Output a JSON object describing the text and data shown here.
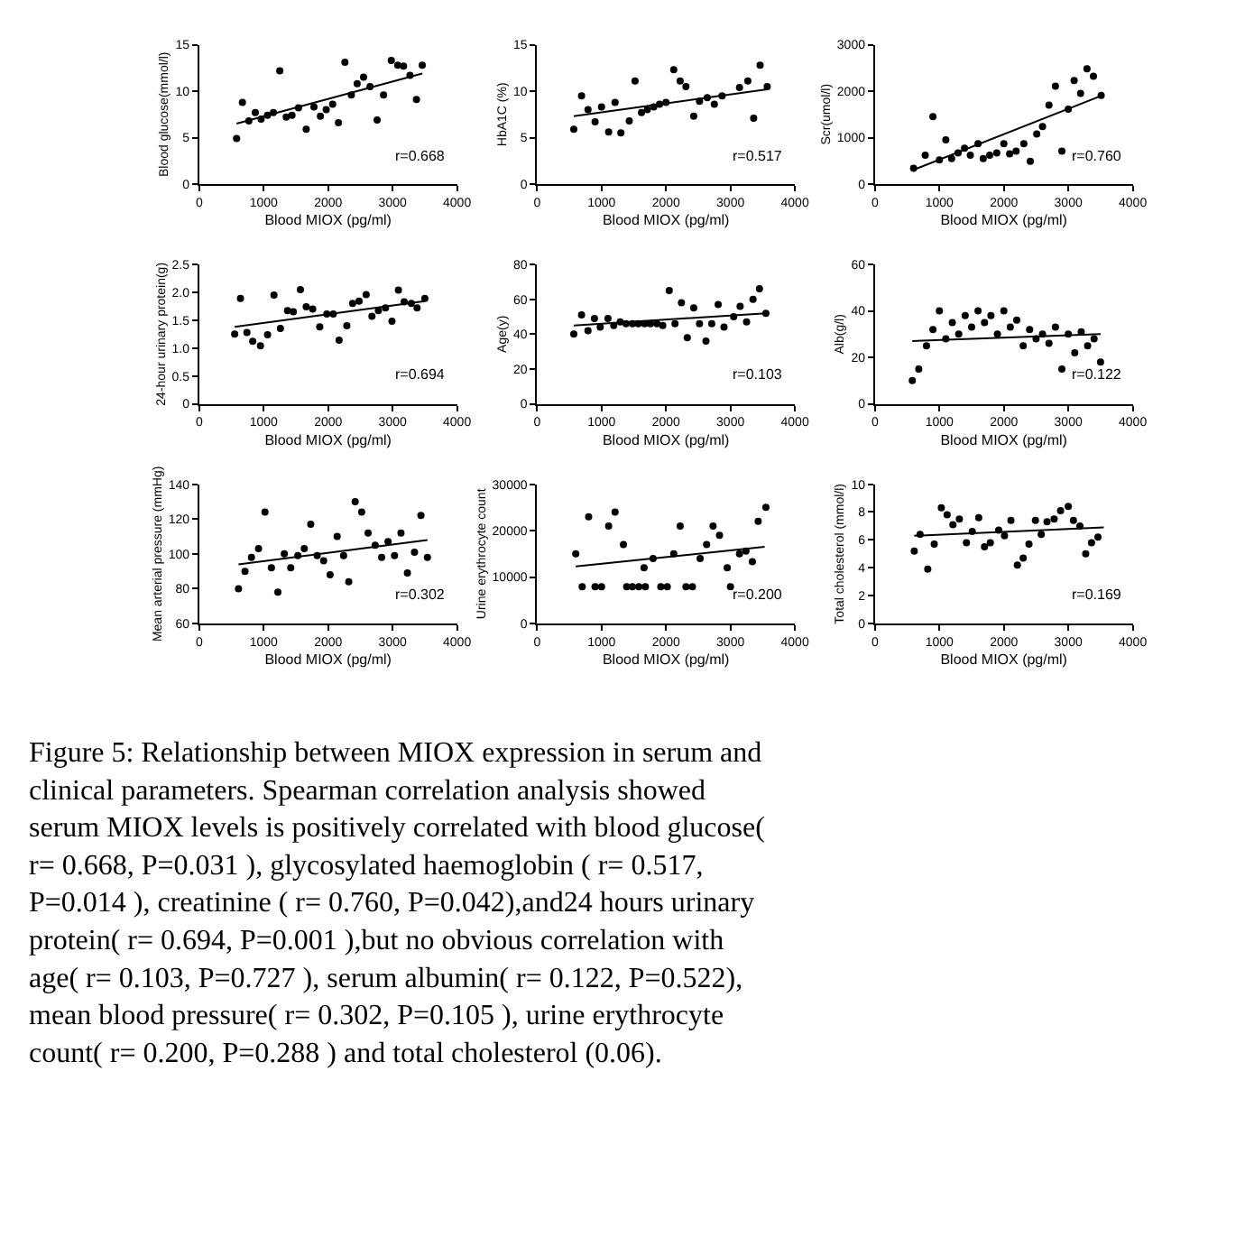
{
  "chart_data": [
    {
      "type": "scatter",
      "xlabel": "Blood MIOX (pg/ml)",
      "ylabel": "Blood glucose(mmol/l)",
      "xlim": [
        0,
        4000
      ],
      "xticks": [
        0,
        1000,
        2000,
        3000,
        4000
      ],
      "ylim": [
        0,
        15
      ],
      "yticks": [
        0,
        5,
        10,
        15
      ],
      "marker": "circle",
      "annotations": [
        "r=0.668"
      ],
      "series": [
        {
          "type": "scatter",
          "color": "#000000",
          "x": [
            580,
            670,
            770,
            870,
            960,
            1060,
            1150,
            1250,
            1350,
            1440,
            1540,
            1660,
            1780,
            1880,
            1970,
            2070,
            2160,
            2260,
            2360,
            2450,
            2550,
            2650,
            2760,
            2860,
            2980,
            3080,
            3170,
            3270,
            3370,
            3460
          ],
          "values": [
            4.9,
            8.8,
            6.8,
            7.7,
            7.0,
            7.4,
            7.7,
            12.2,
            7.2,
            7.4,
            8.2,
            5.9,
            8.3,
            7.3,
            8.0,
            8.6,
            6.6,
            13.1,
            9.6,
            10.8,
            11.5,
            10.5,
            6.9,
            9.6,
            13.3,
            12.8,
            12.7,
            11.7,
            9.1,
            12.8
          ]
        },
        {
          "type": "line",
          "marker": "none",
          "color": "#000000",
          "x": [
            580,
            3460
          ],
          "values": [
            6.5,
            11.9
          ]
        }
      ]
    },
    {
      "type": "scatter",
      "xlabel": "Blood MIOX (pg/ml)",
      "ylabel": "HbA1C (%)",
      "xlim": [
        0,
        4000
      ],
      "xticks": [
        0,
        1000,
        2000,
        3000,
        4000
      ],
      "ylim": [
        0,
        15
      ],
      "yticks": [
        0,
        5,
        10,
        15
      ],
      "marker": "circle",
      "annotations": [
        "r=0.517"
      ],
      "series": [
        {
          "type": "scatter",
          "color": "#000000",
          "x": [
            570,
            690,
            790,
            900,
            1000,
            1110,
            1210,
            1300,
            1430,
            1520,
            1620,
            1710,
            1810,
            1900,
            2000,
            2120,
            2220,
            2310,
            2430,
            2520,
            2640,
            2750,
            2870,
            3140,
            3270,
            3360,
            3460,
            3570
          ],
          "values": [
            5.9,
            9.5,
            8.0,
            6.7,
            8.3,
            5.6,
            8.8,
            5.5,
            6.8,
            11.1,
            7.7,
            8.0,
            8.3,
            8.6,
            8.8,
            12.3,
            11.1,
            10.5,
            7.3,
            8.9,
            9.3,
            8.6,
            9.5,
            10.4,
            11.1,
            7.1,
            12.8,
            10.5
          ]
        },
        {
          "type": "line",
          "marker": "none",
          "color": "#000000",
          "x": [
            570,
            3570
          ],
          "values": [
            7.3,
            10.2
          ]
        }
      ]
    },
    {
      "type": "scatter",
      "xlabel": "Blood MIOX (pg/ml)",
      "ylabel": "Scr(umol/l)",
      "xlim": [
        0,
        4000
      ],
      "xticks": [
        0,
        1000,
        2000,
        3000,
        4000
      ],
      "ylim": [
        0,
        3000
      ],
      "yticks": [
        0,
        1000,
        2000,
        3000
      ],
      "marker": "circle",
      "annotations": [
        "r=0.760"
      ],
      "series": [
        {
          "type": "scatter",
          "color": "#000000",
          "x": [
            600,
            780,
            900,
            1000,
            1100,
            1190,
            1290,
            1390,
            1480,
            1600,
            1680,
            1780,
            1890,
            2000,
            2090,
            2190,
            2310,
            2410,
            2510,
            2600,
            2700,
            2800,
            2900,
            3000,
            3090,
            3190,
            3290,
            3390,
            3510
          ],
          "values": [
            340,
            620,
            1450,
            520,
            950,
            550,
            670,
            770,
            620,
            870,
            550,
            620,
            670,
            870,
            650,
            710,
            870,
            490,
            1080,
            1240,
            1700,
            2110,
            710,
            1610,
            2230,
            1950,
            2480,
            2320,
            1910
          ]
        },
        {
          "type": "line",
          "marker": "none",
          "color": "#000000",
          "x": [
            585,
            3530
          ],
          "values": [
            300,
            1910
          ]
        }
      ]
    },
    {
      "type": "scatter",
      "xlabel": "Blood MIOX (pg/ml)",
      "ylabel": "24-hour urinary protein(g)",
      "xlim": [
        0,
        4000
      ],
      "xticks": [
        0,
        1000,
        2000,
        3000,
        4000
      ],
      "ylim": [
        0,
        2.5
      ],
      "yticks": [
        0,
        0.5,
        {
          "value": 1,
          "label": "1.0"
        },
        1.5,
        {
          "value": 2,
          "label": "2.0"
        },
        2.5
      ],
      "marker": "circle",
      "annotations": [
        "r=0.694"
      ],
      "series": [
        {
          "type": "scatter",
          "color": "#000000",
          "x": [
            550,
            640,
            740,
            830,
            950,
            1060,
            1160,
            1260,
            1370,
            1460,
            1570,
            1660,
            1760,
            1870,
            1980,
            2080,
            2170,
            2290,
            2380,
            2480,
            2590,
            2680,
            2780,
            2890,
            2990,
            3090,
            3180,
            3290,
            3380,
            3500
          ],
          "values": [
            1.25,
            1.89,
            1.28,
            1.12,
            1.04,
            1.24,
            1.95,
            1.35,
            1.67,
            1.65,
            2.05,
            1.74,
            1.7,
            1.38,
            1.61,
            1.61,
            1.14,
            1.4,
            1.8,
            1.84,
            1.96,
            1.57,
            1.67,
            1.72,
            1.48,
            2.04,
            1.83,
            1.8,
            1.72,
            1.89
          ]
        },
        {
          "type": "line",
          "marker": "none",
          "color": "#000000",
          "x": [
            550,
            3500
          ],
          "values": [
            1.38,
            1.84
          ]
        }
      ]
    },
    {
      "type": "scatter",
      "xlabel": "Blood MIOX (pg/ml)",
      "ylabel": "Age(y)",
      "xlim": [
        0,
        4000
      ],
      "xticks": [
        0,
        1000,
        2000,
        3000,
        4000
      ],
      "ylim": [
        0,
        80
      ],
      "yticks": [
        0,
        20,
        40,
        60,
        80
      ],
      "marker": "circle",
      "annotations": [
        "r=0.103"
      ],
      "series": [
        {
          "type": "scatter",
          "color": "#000000",
          "x": [
            570,
            690,
            790,
            890,
            980,
            1100,
            1190,
            1290,
            1380,
            1480,
            1570,
            1670,
            1760,
            1860,
            1950,
            2050,
            2140,
            2240,
            2330,
            2430,
            2520,
            2620,
            2710,
            2810,
            2900,
            3050,
            3150,
            3250,
            3350,
            3450,
            3550
          ],
          "values": [
            40,
            51,
            42,
            49,
            44,
            49,
            45,
            47,
            46,
            46,
            46,
            46,
            46,
            46,
            45,
            65,
            46,
            58,
            38,
            55,
            46,
            36,
            46,
            57,
            44,
            50,
            56,
            47,
            60,
            66,
            52
          ]
        },
        {
          "type": "line",
          "marker": "none",
          "color": "#000000",
          "x": [
            570,
            3550
          ],
          "values": [
            45,
            52
          ]
        }
      ]
    },
    {
      "type": "scatter",
      "xlabel": "Blood MIOX (pg/ml)",
      "ylabel": "Alb(g/l)",
      "xlim": [
        0,
        4000
      ],
      "xticks": [
        0,
        1000,
        2000,
        3000,
        4000
      ],
      "ylim": [
        0,
        60
      ],
      "yticks": [
        0,
        20,
        40,
        60
      ],
      "marker": "circle",
      "annotations": [
        "r=0.122"
      ],
      "series": [
        {
          "type": "scatter",
          "color": "#000000",
          "x": [
            580,
            680,
            800,
            900,
            1000,
            1100,
            1200,
            1300,
            1400,
            1500,
            1600,
            1700,
            1800,
            1900,
            2000,
            2100,
            2200,
            2300,
            2400,
            2500,
            2600,
            2700,
            2800,
            2900,
            3000,
            3100,
            3200,
            3300,
            3400,
            3500
          ],
          "values": [
            10,
            15,
            25,
            32,
            40,
            28,
            35,
            30,
            38,
            33,
            40,
            35,
            38,
            30,
            40,
            33,
            36,
            25,
            32,
            28,
            30,
            26,
            33,
            15,
            30,
            22,
            31,
            25,
            28,
            18
          ]
        },
        {
          "type": "line",
          "marker": "none",
          "color": "#000000",
          "x": [
            580,
            3500
          ],
          "values": [
            27,
            30
          ]
        }
      ]
    },
    {
      "type": "scatter",
      "xlabel": "Blood MIOX (pg/ml)",
      "ylabel": "Mean arterial pressure (mmHg)",
      "xlim": [
        0,
        4000
      ],
      "xticks": [
        0,
        1000,
        2000,
        3000,
        4000
      ],
      "ylim": [
        60,
        140
      ],
      "yticks": [
        60,
        80,
        100,
        120,
        140
      ],
      "marker": "circle",
      "annotations": [
        "r=0.302"
      ],
      "series": [
        {
          "type": "scatter",
          "color": "#000000",
          "x": [
            610,
            710,
            810,
            920,
            1020,
            1120,
            1220,
            1320,
            1420,
            1530,
            1630,
            1730,
            1830,
            1930,
            2030,
            2140,
            2240,
            2320,
            2420,
            2520,
            2620,
            2730,
            2830,
            2930,
            3030,
            3130,
            3230,
            3340,
            3440,
            3540
          ],
          "values": [
            80,
            90,
            98,
            103,
            124,
            92,
            78,
            100,
            92,
            99,
            103,
            117,
            99,
            96,
            88,
            110,
            99,
            84,
            130,
            124,
            112,
            105,
            98,
            107,
            99,
            112,
            89,
            101,
            122,
            98
          ]
        },
        {
          "type": "line",
          "marker": "none",
          "color": "#000000",
          "x": [
            610,
            3540
          ],
          "values": [
            94,
            108
          ]
        }
      ]
    },
    {
      "type": "scatter",
      "xlabel": "Blood MIOX (pg/ml)",
      "ylabel": "Urine erythrocyte count",
      "xlim": [
        0,
        4000
      ],
      "xticks": [
        0,
        1000,
        2000,
        3000,
        4000
      ],
      "ylim": [
        0,
        30000
      ],
      "yticks": [
        0,
        10000,
        20000,
        30000
      ],
      "marker": "circle",
      "annotations": [
        "r=0.200"
      ],
      "series": [
        {
          "type": "scatter",
          "color": "#000000",
          "x": [
            600,
            800,
            1110,
            1210,
            1340,
            1660,
            1800,
            2120,
            2220,
            2530,
            2630,
            2730,
            2830,
            2950,
            3140,
            3240,
            3340,
            3430,
            3550,
            700,
            900,
            1000,
            1390,
            1480,
            1580,
            1680,
            1920,
            2020,
            2310,
            2410,
            3000
          ],
          "values": [
            15000,
            23000,
            21000,
            24000,
            17000,
            12000,
            14000,
            15000,
            21000,
            14000,
            17000,
            21000,
            19000,
            12000,
            15000,
            15600,
            13300,
            22000,
            25000,
            7900,
            7900,
            7900,
            7900,
            7900,
            7900,
            7900,
            7900,
            7900,
            7900,
            7900,
            7900
          ]
        },
        {
          "type": "line",
          "marker": "none",
          "color": "#000000",
          "x": [
            600,
            3530
          ],
          "values": [
            12300,
            16500
          ]
        }
      ]
    },
    {
      "type": "scatter",
      "xlabel": "Blood MIOX (pg/ml)",
      "ylabel": "Total cholesterol (mmol/l)",
      "xlim": [
        0,
        4000
      ],
      "xticks": [
        0,
        1000,
        2000,
        3000,
        4000
      ],
      "ylim": [
        0,
        10
      ],
      "yticks": [
        0,
        2,
        4,
        6,
        8,
        10
      ],
      "marker": "circle",
      "annotations": [
        "r=0.169"
      ],
      "series": [
        {
          "type": "scatter",
          "color": "#000000",
          "x": [
            610,
            700,
            820,
            920,
            1030,
            1120,
            1210,
            1310,
            1420,
            1510,
            1610,
            1700,
            1790,
            1920,
            2010,
            2110,
            2210,
            2300,
            2390,
            2490,
            2580,
            2670,
            2780,
            2880,
            3000,
            3080,
            3180,
            3270,
            3360,
            3460
          ],
          "values": [
            5.2,
            6.4,
            3.9,
            5.7,
            8.3,
            7.8,
            7.1,
            7.5,
            5.8,
            6.6,
            7.6,
            5.5,
            5.8,
            6.7,
            6.3,
            7.4,
            4.2,
            4.7,
            5.7,
            7.4,
            6.4,
            7.3,
            7.5,
            8.1,
            8.4,
            7.4,
            7.0,
            5.0,
            5.8,
            6.2
          ]
        },
        {
          "type": "line",
          "marker": "none",
          "color": "#000000",
          "x": [
            610,
            3550
          ],
          "values": [
            6.3,
            6.9
          ]
        }
      ]
    },
    {
      "type": "other",
      "annotations": [
        "Figure 5: Relationship between MIOX expression in serum and clinical parameters. Spearman correlation analysis showed serum MIOX levels is positively correlated with blood glucose( r= 0.668, P=0.031 ), glycosylated haemoglobin ( r= 0.517, P=0.014 ), creatinine ( r= 0.760, P=0.042),and24 hours urinary protein( r= 0.694, P=0.001 ),but no obvious correlation with age( r= 0.103, P=0.727 ), serum albumin( r= 0.122, P=0.522), mean blood pressure( r= 0.302, P=0.105 ), urine erythrocyte count( r= 0.200, P=0.288 ) and total cholesterol (0.06)."
      ]
    }
  ]
}
